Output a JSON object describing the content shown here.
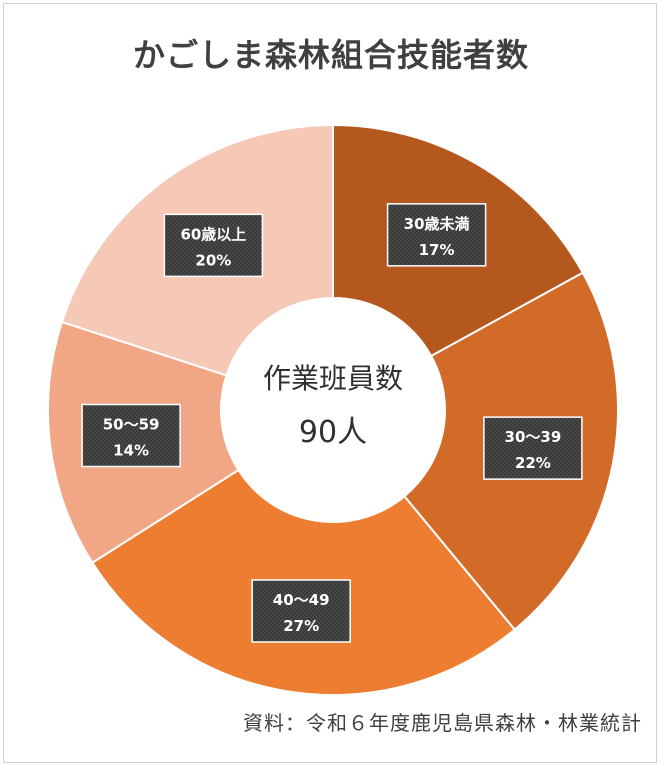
{
  "title": "かごしま森林組合技能者数",
  "center": {
    "line1": "作業班員数",
    "line2": "90人"
  },
  "source": "資料：令和６年度鹿児島県森林・林業統計",
  "chart_data": {
    "type": "pie",
    "variant": "donut",
    "title": "かごしま森林組合技能者数",
    "slices": [
      {
        "label": "30歳未満",
        "percent_label": "17%",
        "value": 17,
        "color": "#b4581e"
      },
      {
        "label": "30～39",
        "percent_label": "22%",
        "value": 22,
        "color": "#d26a28"
      },
      {
        "label": "40～49",
        "percent_label": "27%",
        "value": 27,
        "color": "#ed7d31"
      },
      {
        "label": "50～59",
        "percent_label": "14%",
        "value": 14,
        "color": "#f1a686"
      },
      {
        "label": "60歳以上",
        "percent_label": "20%",
        "value": 20,
        "color": "#f6c8b6"
      }
    ]
  }
}
